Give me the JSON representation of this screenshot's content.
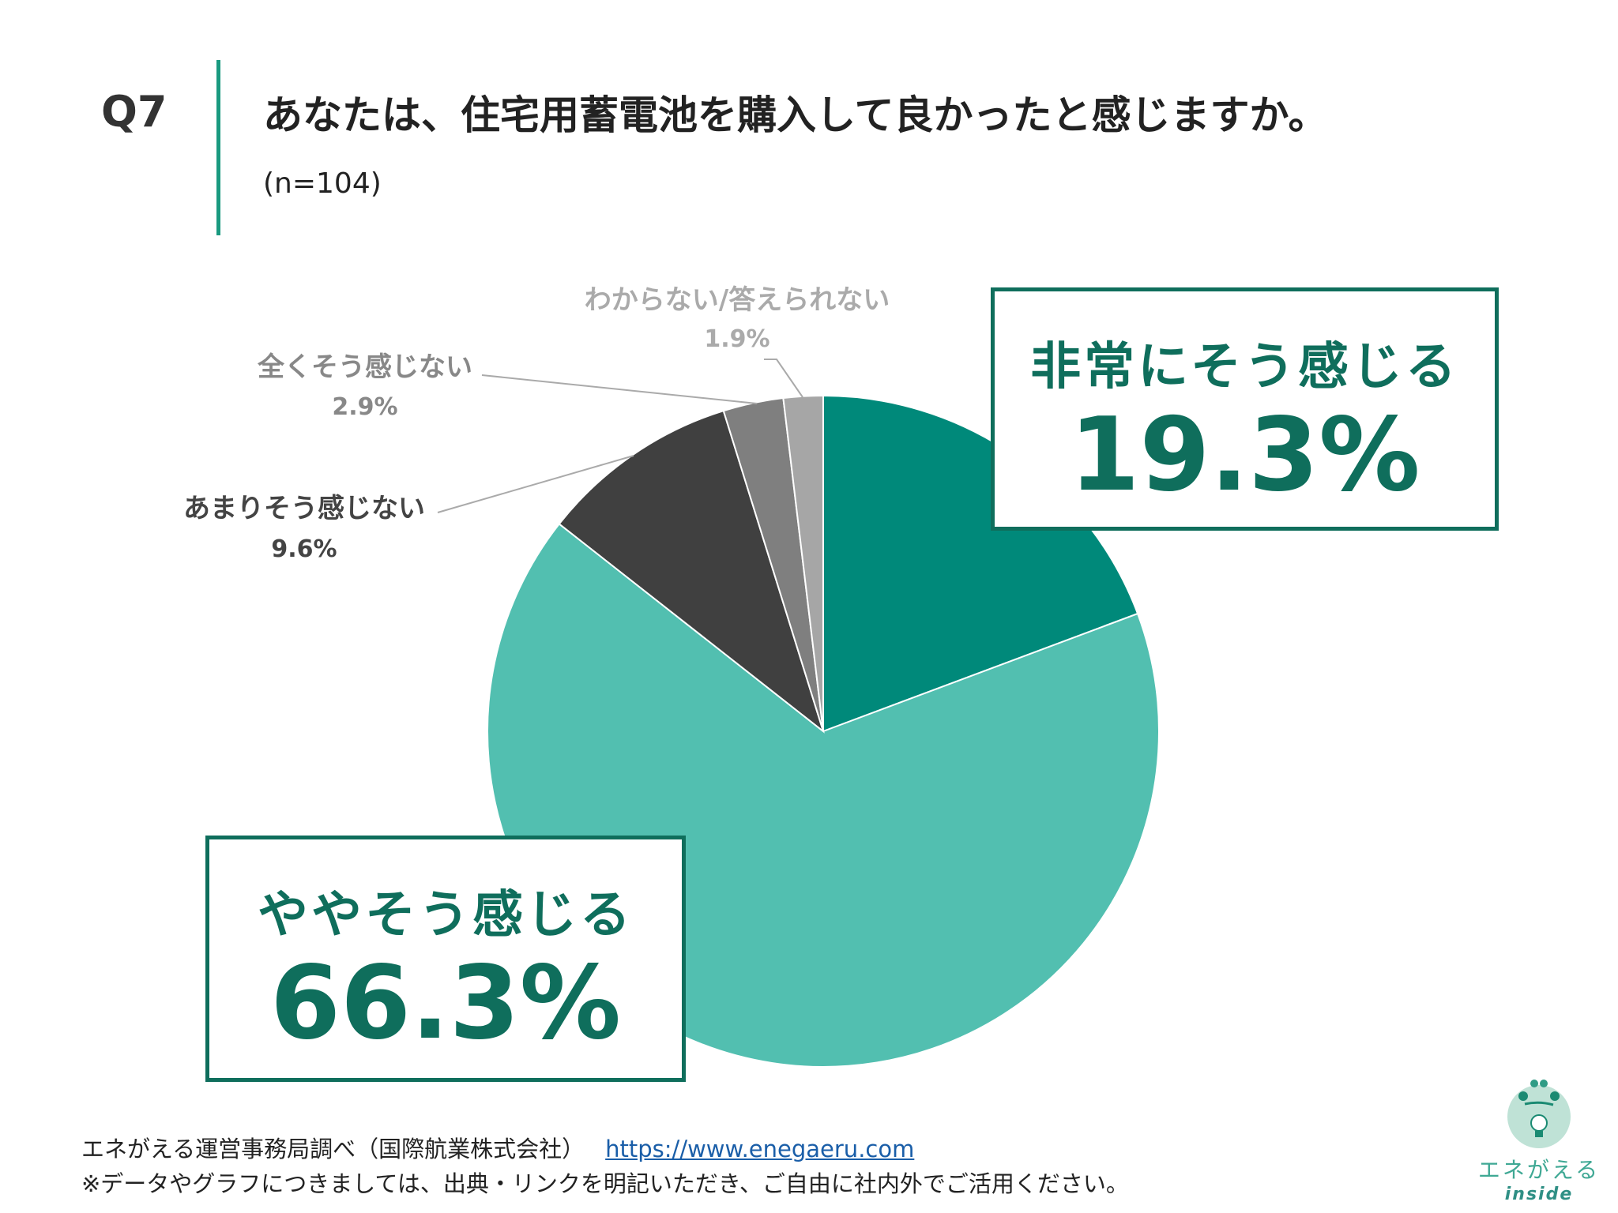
{
  "header": {
    "question_no": "Q7",
    "title": "あなたは、住宅用蓄電池を購入して良かったと感じますか。",
    "sample": "(n=104)"
  },
  "chart_data": {
    "type": "pie",
    "title": "あなたは、住宅用蓄電池を購入して良かったと感じますか。",
    "n": 104,
    "start": "12 o'clock, clockwise",
    "slices": [
      {
        "label": "非常にそう感じる",
        "value": 19.3,
        "display": "19.3%",
        "color": "#00897a"
      },
      {
        "label": "ややそう感じる",
        "value": 66.3,
        "display": "66.3%",
        "color": "#52bfb0"
      },
      {
        "label": "あまりそう感じない",
        "value": 9.6,
        "display": "9.6%",
        "color": "#404040"
      },
      {
        "label": "全くそう感じない",
        "value": 2.9,
        "display": "2.9%",
        "color": "#7f7f7f"
      },
      {
        "label": "わからない/答えられない",
        "value": 1.9,
        "display": "1.9%",
        "color": "#a6a6a6"
      }
    ]
  },
  "footer": {
    "source": "エネがえる運営事務局調べ（国際航業株式会社）",
    "link": "https://www.enegaeru.com",
    "note": "※データやグラフにつきましては、出典・リンクを明記いただき、ご自由に社内外でご活用ください。"
  },
  "logo": {
    "name": "エネがえる",
    "sub": "inside"
  }
}
